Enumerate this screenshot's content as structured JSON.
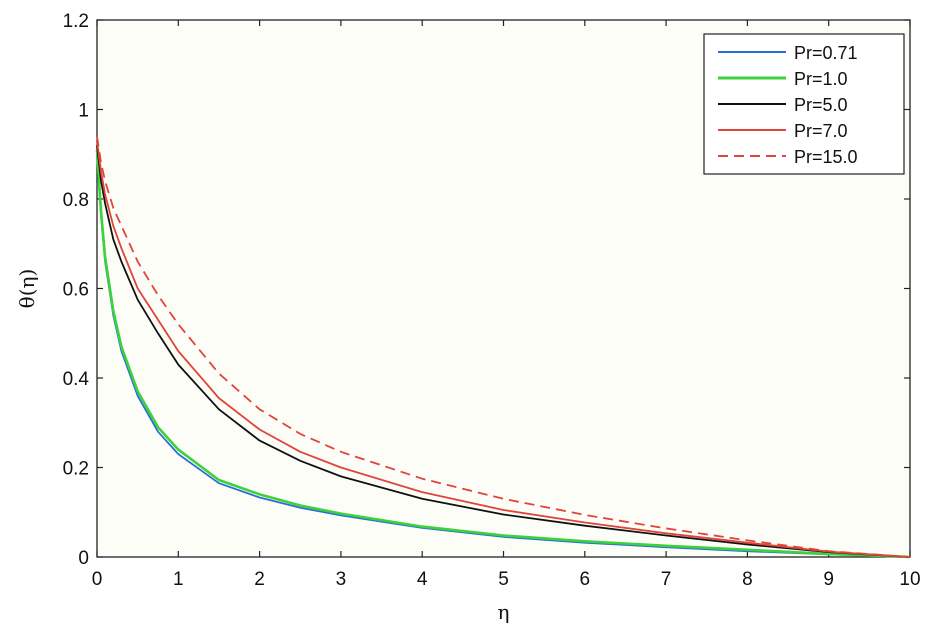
{
  "chart_data": {
    "type": "line",
    "xlabel": "η",
    "ylabel": "θ(η)",
    "xlim": [
      0,
      10
    ],
    "ylim": [
      0,
      1.2
    ],
    "xticks": [
      "0",
      "1",
      "2",
      "3",
      "4",
      "5",
      "6",
      "7",
      "8",
      "9",
      "10"
    ],
    "yticks": [
      "0",
      "0.2",
      "0.4",
      "0.6",
      "0.8",
      "1",
      "1.2"
    ],
    "grid": false,
    "legend_position": "top-right",
    "x": [
      0,
      0.05,
      0.1,
      0.2,
      0.3,
      0.5,
      0.75,
      1,
      1.5,
      2,
      2.5,
      3,
      4,
      5,
      6,
      7,
      8,
      9,
      10
    ],
    "series": [
      {
        "name": "Pr=0.71",
        "color": "#2b6fd6",
        "dash": "solid",
        "values": [
          0.9,
          0.76,
          0.66,
          0.54,
          0.46,
          0.36,
          0.28,
          0.23,
          0.165,
          0.133,
          0.11,
          0.093,
          0.065,
          0.045,
          0.032,
          0.022,
          0.013,
          0.006,
          0
        ]
      },
      {
        "name": "Pr=1.0",
        "color": "#3cd23c",
        "dash": "solid",
        "values": [
          0.91,
          0.77,
          0.67,
          0.55,
          0.47,
          0.37,
          0.29,
          0.24,
          0.172,
          0.14,
          0.115,
          0.097,
          0.068,
          0.048,
          0.035,
          0.025,
          0.016,
          0.007,
          0
        ]
      },
      {
        "name": "Pr=5.0",
        "color": "#111111",
        "dash": "solid",
        "values": [
          0.92,
          0.84,
          0.79,
          0.71,
          0.66,
          0.575,
          0.5,
          0.43,
          0.33,
          0.26,
          0.215,
          0.18,
          0.13,
          0.095,
          0.07,
          0.048,
          0.028,
          0.011,
          0
        ]
      },
      {
        "name": "Pr=7.0",
        "color": "#e0443a",
        "dash": "solid",
        "values": [
          0.93,
          0.86,
          0.81,
          0.74,
          0.69,
          0.6,
          0.53,
          0.46,
          0.355,
          0.285,
          0.235,
          0.2,
          0.145,
          0.105,
          0.077,
          0.053,
          0.032,
          0.012,
          0
        ]
      },
      {
        "name": "Pr=15.0",
        "color": "#e0443a",
        "dash": "dashed",
        "values": [
          0.94,
          0.88,
          0.84,
          0.78,
          0.74,
          0.66,
          0.585,
          0.52,
          0.41,
          0.33,
          0.275,
          0.235,
          0.175,
          0.13,
          0.094,
          0.064,
          0.037,
          0.013,
          0
        ]
      }
    ]
  }
}
